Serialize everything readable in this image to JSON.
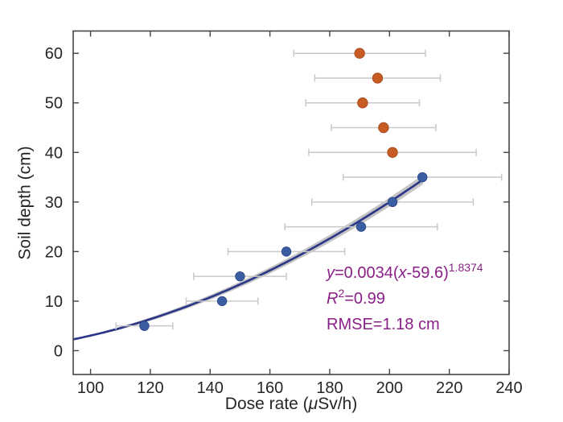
{
  "figure": {
    "x_axis": {
      "label_segments": [
        {
          "t": "Dose rate ("
        },
        {
          "t": "μ",
          "italic": true
        },
        {
          "t": "Sv/h)"
        }
      ],
      "label_plain": "Dose rate (μSv/h)"
    },
    "y_axis": {
      "label": "Soil depth (cm)"
    }
  },
  "chart_data": {
    "type": "scatter",
    "title": "",
    "xlabel": "Dose rate (μSv/h)",
    "ylabel": "Soil depth (cm)",
    "xlim": [
      94.2,
      240
    ],
    "ylim": [
      -4.8,
      64.5
    ],
    "x_ticks": [
      100,
      120,
      140,
      160,
      180,
      200,
      220,
      240
    ],
    "y_ticks": [
      0,
      10,
      20,
      30,
      40,
      50,
      60
    ],
    "grid": false,
    "legend": "none",
    "series": [
      {
        "name": "shallow-points-fitted",
        "color": "#3B5EA3",
        "edge_color": "#2F4C8C",
        "marker_r": 5.7,
        "points": [
          {
            "depth": 5,
            "dose": 118,
            "err": 9.5
          },
          {
            "depth": 10,
            "dose": 144,
            "err": 12
          },
          {
            "depth": 15,
            "dose": 150,
            "err": 15.5
          },
          {
            "depth": 20,
            "dose": 165.5,
            "err": 19.5
          },
          {
            "depth": 25,
            "dose": 190.5,
            "err": 25.5
          },
          {
            "depth": 30,
            "dose": 201,
            "err": 27
          },
          {
            "depth": 35,
            "dose": 211,
            "err": 26.5
          }
        ]
      },
      {
        "name": "deep-points-excluded",
        "color": "#C65C24",
        "edge_color": "#A84A1E",
        "marker_r": 6.2,
        "points": [
          {
            "depth": 40,
            "dose": 201,
            "err": 28
          },
          {
            "depth": 45,
            "dose": 198,
            "err": 17.5
          },
          {
            "depth": 50,
            "dose": 191,
            "err": 19
          },
          {
            "depth": 55,
            "dose": 196,
            "err": 21
          },
          {
            "depth": 60,
            "dose": 190,
            "err": 22
          }
        ]
      }
    ],
    "fit": {
      "equation": "y=0.0034(x-59.6)^1.8374",
      "a": 0.0034,
      "x0": 59.6,
      "exponent": 1.8374,
      "x_start": 94.2,
      "x_end": 211.2,
      "r_squared": 0.99,
      "rmse_cm": 1.18,
      "line_color": "#2B3688",
      "band_color": "#C4C4C4"
    },
    "annotation": {
      "color": "#8B2088",
      "lines": [
        {
          "name": "equation-annotation",
          "segments": [
            {
              "t": "y",
              "italic": true
            },
            {
              "t": "=0.0034("
            },
            {
              "t": "x",
              "italic": true
            },
            {
              "t": "-59.6)"
            },
            {
              "t": "1.8374",
              "sup": true
            }
          ]
        },
        {
          "name": "r-squared-annotation",
          "segments": [
            {
              "t": "R",
              "italic": true
            },
            {
              "t": "2",
              "sup": true
            },
            {
              "t": "=0.99"
            }
          ]
        },
        {
          "name": "rmse-annotation",
          "segments": [
            {
              "t": "RMSE=1.18 cm"
            }
          ]
        }
      ]
    },
    "errorbar_color": "#C9C9C9",
    "axis_color": "#454545",
    "text_color": "#262626",
    "tick_font_size": 20
  }
}
